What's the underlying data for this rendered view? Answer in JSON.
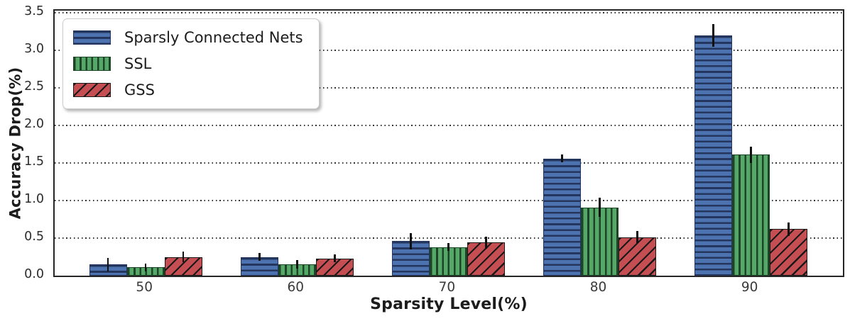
{
  "chart_data": {
    "type": "bar",
    "title": "",
    "xlabel": "Sparsity Level(%)",
    "ylabel": "Accuracy Drop(%)",
    "categories": [
      "50",
      "60",
      "70",
      "80",
      "90"
    ],
    "ylim": [
      0,
      3.53
    ],
    "yticks": [
      0.0,
      0.5,
      1.0,
      1.5,
      2.0,
      2.5,
      3.0,
      3.5
    ],
    "grid": "horizontal-dotted-black",
    "legend_position": "upper-left",
    "error_bars": true,
    "series": [
      {
        "name": "Sparsly Connected Nets",
        "color": "#4C72B0",
        "hatch": "horizontal",
        "hatch_color": "#24365e",
        "values": [
          0.15,
          0.25,
          0.46,
          1.56,
          3.2
        ],
        "errors": [
          0.09,
          0.05,
          0.11,
          0.05,
          0.15
        ]
      },
      {
        "name": "SSL",
        "color": "#55A868",
        "hatch": "vertical",
        "hatch_color": "#1d4427",
        "values": [
          0.11,
          0.15,
          0.38,
          0.91,
          1.61
        ],
        "errors": [
          0.05,
          0.06,
          0.05,
          0.13,
          0.11
        ]
      },
      {
        "name": "GSS",
        "color": "#C44E52",
        "hatch": "diagonal",
        "hatch_color": "#191919",
        "values": [
          0.25,
          0.23,
          0.44,
          0.51,
          0.62
        ],
        "errors": [
          0.07,
          0.05,
          0.08,
          0.08,
          0.09
        ]
      }
    ]
  }
}
